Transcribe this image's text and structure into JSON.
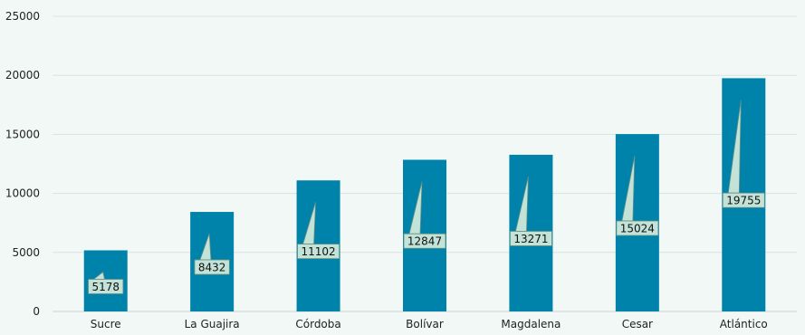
{
  "chart_data": {
    "type": "bar",
    "title": "",
    "xlabel": "",
    "ylabel": "",
    "categories": [
      "Sucre",
      "La Guajira",
      "Córdoba",
      "Bolívar",
      "Magdalena",
      "Cesar",
      "Atlántico"
    ],
    "values": [
      5178,
      8432,
      11102,
      12847,
      13271,
      15024,
      19755
    ],
    "data_labels": [
      "5178",
      "8432",
      "11102",
      "12847",
      "13271",
      "15024",
      "19755"
    ],
    "y_ticks": [
      0,
      5000,
      10000,
      15000,
      20000,
      25000
    ],
    "y_tick_labels": [
      "0",
      "5000",
      "10000",
      "15000",
      "20000",
      "25000"
    ],
    "ylim": [
      0,
      25000
    ],
    "grid": true,
    "legend": "none",
    "colors": {
      "bar": "#0083ab",
      "background": "#f1f8f6",
      "callout": "#c4e3d8"
    }
  }
}
